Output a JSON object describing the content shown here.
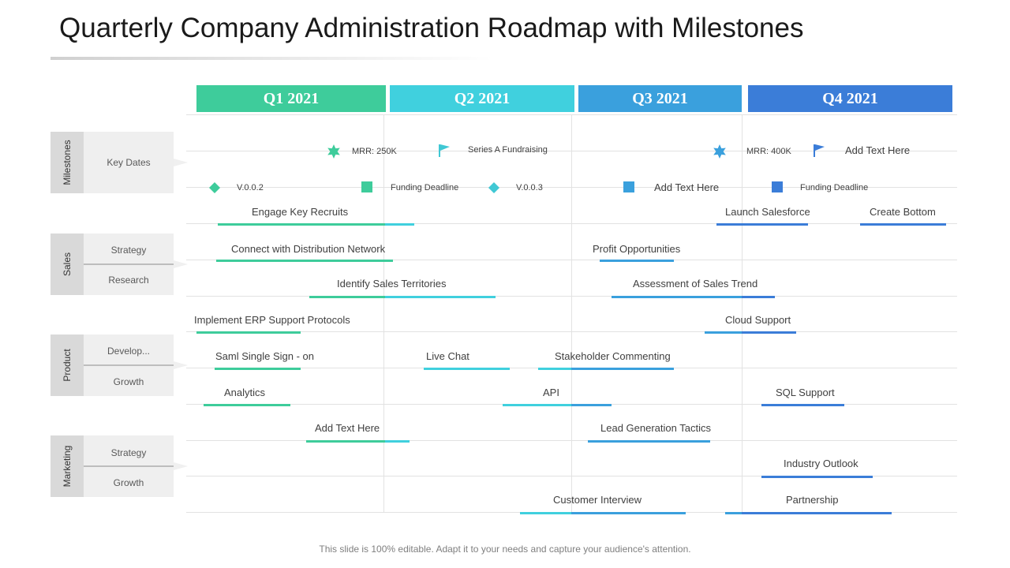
{
  "title": "Quarterly Company Administration Roadmap with Milestones",
  "quarters": [
    {
      "label": "Q1 2021",
      "color": "#3ecc9b"
    },
    {
      "label": "Q2 2021",
      "color": "#40d0de"
    },
    {
      "label": "Q3 2021",
      "color": "#3aa0dd"
    },
    {
      "label": "Q4 2021",
      "color": "#3b7dd8"
    }
  ],
  "categories": {
    "milestones": {
      "label": "Milestones",
      "sub": [
        "Key Dates"
      ]
    },
    "sales": {
      "label": "Sales",
      "sub": [
        "Strategy",
        "Research"
      ]
    },
    "product": {
      "label": "Product",
      "sub": [
        "Develop...",
        "Growth"
      ]
    },
    "marketing": {
      "label": "Marketing",
      "sub": [
        "Strategy",
        "Growth"
      ]
    }
  },
  "milestones": [
    {
      "icon": "star-icon",
      "label": "MRR: 250K",
      "color": "#3ecc9b"
    },
    {
      "icon": "flag-icon",
      "label": "Series A Fundraising",
      "color": "#40c8d4"
    },
    {
      "icon": "star-icon",
      "label": "MRR: 400K",
      "color": "#3aa0dd"
    },
    {
      "icon": "flag-icon",
      "label": "Add Text Here",
      "color": "#3b7dd8"
    },
    {
      "icon": "diamond-icon",
      "label": "V.0.0.2",
      "color": "#3ecc9b"
    },
    {
      "icon": "square-icon",
      "label": "Funding Deadline",
      "color": "#3ecc9b"
    },
    {
      "icon": "diamond-icon",
      "label": "V.0.0.3",
      "color": "#40c8d4"
    },
    {
      "icon": "square-icon",
      "label": "Add Text Here",
      "color": "#3aa0dd"
    },
    {
      "icon": "square-icon",
      "label": "Funding Deadline",
      "color": "#3b7dd8"
    }
  ],
  "tasks": [
    "Engage Key Recruits",
    "Launch Salesforce",
    "Create Bottom",
    "Connect with Distribution Network",
    "Profit Opportunities",
    "Identify Sales Territories",
    "Assessment of Sales Trend",
    "Implement ERP Support Protocols",
    "Cloud Support",
    "Saml Single Sign - on",
    "Live Chat",
    "Stakeholder Commenting",
    "Analytics",
    "API",
    "SQL Support",
    "Add Text Here",
    "Lead Generation Tactics",
    "Industry Outlook",
    "Customer Interview",
    "Partnership"
  ],
  "footer": "This slide is 100% editable. Adapt it to your needs and capture your audience's attention."
}
